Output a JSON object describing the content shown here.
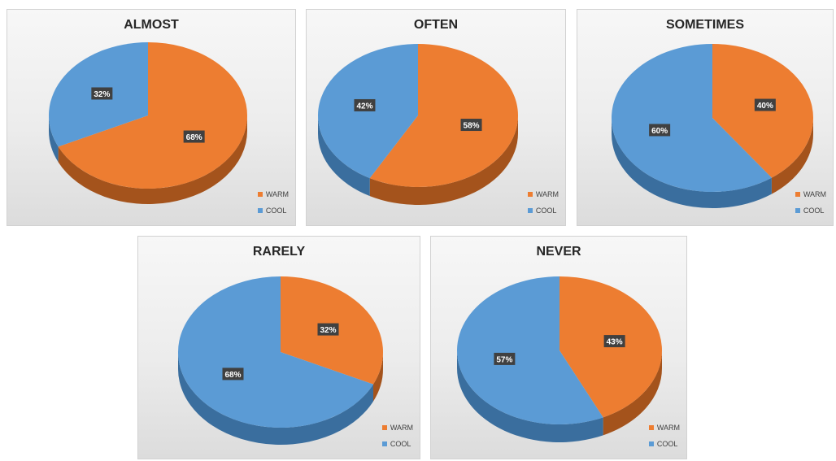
{
  "colors": {
    "warm": "#ED7D31",
    "cool": "#5B9BD5",
    "warm_side": "#A4531C",
    "cool_side": "#3A6E9E"
  },
  "chart_data": [
    {
      "type": "pie",
      "title": "ALMOST",
      "categories": [
        "WARM",
        "COOL"
      ],
      "values": [
        68,
        32
      ],
      "labels": [
        "68%",
        "32%"
      ],
      "legend": "bottom-right"
    },
    {
      "type": "pie",
      "title": "OFTEN",
      "categories": [
        "WARM",
        "COOL"
      ],
      "values": [
        58,
        42
      ],
      "labels": [
        "58%",
        "42%"
      ],
      "legend": "bottom-right"
    },
    {
      "type": "pie",
      "title": "SOMETIMES",
      "categories": [
        "WARM",
        "COOL"
      ],
      "values": [
        40,
        60
      ],
      "labels": [
        "40%",
        "60%"
      ],
      "legend": "bottom-right"
    },
    {
      "type": "pie",
      "title": "RARELY",
      "categories": [
        "WARM",
        "COOL"
      ],
      "values": [
        32,
        68
      ],
      "labels": [
        "32%",
        "68%"
      ],
      "legend": "bottom-right"
    },
    {
      "type": "pie",
      "title": "NEVER",
      "categories": [
        "WARM",
        "COOL"
      ],
      "values": [
        43,
        57
      ],
      "labels": [
        "43%",
        "57%"
      ],
      "legend": "bottom-right"
    }
  ]
}
